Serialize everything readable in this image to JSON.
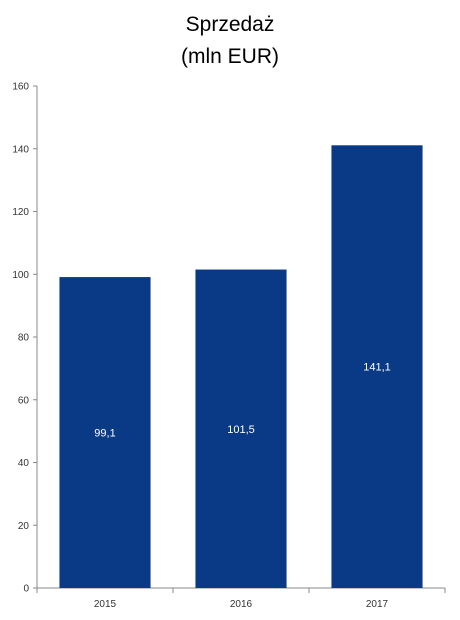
{
  "chart_data": {
    "type": "bar",
    "title": "Sprzedaż",
    "subtitle": "(mln EUR)",
    "categories": [
      "2015",
      "2016",
      "2017"
    ],
    "values": [
      99.1,
      101.5,
      141.1
    ],
    "value_labels": [
      "99,1",
      "101,5",
      "141,1"
    ],
    "ylim": [
      0,
      160
    ],
    "yticks": [
      0,
      20,
      40,
      60,
      80,
      100,
      120,
      140,
      160
    ],
    "grid": false,
    "legend": "none",
    "bar_color": "#0a3a86",
    "label_color": "#ffffff"
  }
}
